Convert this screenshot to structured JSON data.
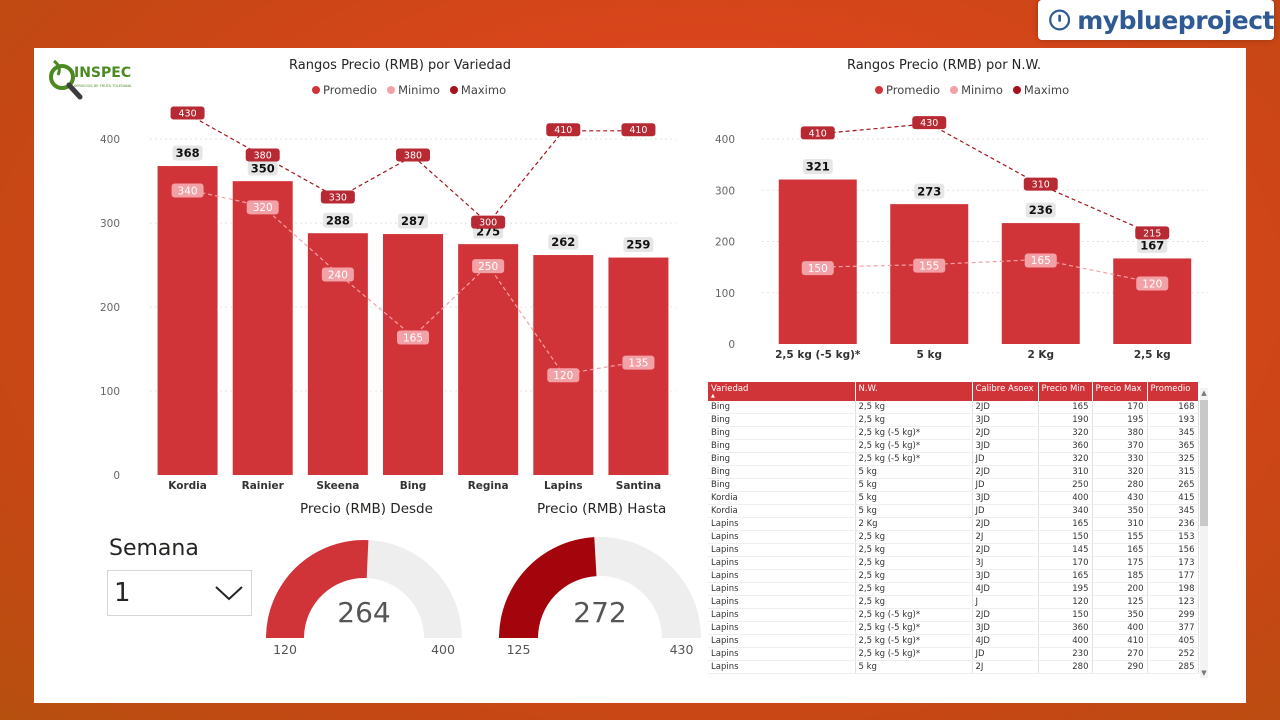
{
  "brand": {
    "text": "myblueproject"
  },
  "logo": {
    "text": "INSPEC",
    "subtitle": "SERVICIOS DE FRUTA TOLEDANA"
  },
  "colors": {
    "bar": "#d13438",
    "dark": "#a4121b",
    "light": "#f2a1a7",
    "axis": "#666666"
  },
  "legend": {
    "promedio": "Promedio",
    "minimo": "Minimo",
    "maximo": "Maximo"
  },
  "chart_data": [
    {
      "type": "bar",
      "title": "Rangos Precio (RMB) por Variedad",
      "categories": [
        "Kordia",
        "Rainier",
        "Skeena",
        "Bing",
        "Regina",
        "Lapins",
        "Santina"
      ],
      "ylim": [
        0,
        430
      ],
      "yticks": [
        0,
        100,
        200,
        300,
        400
      ],
      "series": [
        {
          "name": "Promedio",
          "type": "bar",
          "values": [
            368,
            350,
            288,
            287,
            275,
            262,
            259
          ]
        },
        {
          "name": "Minimo",
          "type": "line",
          "values": [
            340,
            320,
            240,
            165,
            250,
            120,
            135
          ]
        },
        {
          "name": "Maximo",
          "type": "line",
          "values": [
            430,
            380,
            330,
            380,
            300,
            410,
            410
          ]
        }
      ],
      "grid": true,
      "legend": "top-center"
    },
    {
      "type": "bar",
      "title": "Rangos Precio (RMB) por N.W.",
      "categories": [
        "2,5 kg (-5 kg)*",
        "5 kg",
        "2 Kg",
        "2,5 kg"
      ],
      "ylim": [
        0,
        445
      ],
      "yticks": [
        0,
        100,
        200,
        300,
        400
      ],
      "series": [
        {
          "name": "Promedio",
          "type": "bar",
          "values": [
            321,
            273,
            236,
            167
          ]
        },
        {
          "name": "Minimo",
          "type": "line",
          "values": [
            150,
            155,
            165,
            120
          ]
        },
        {
          "name": "Maximo",
          "type": "line",
          "values": [
            410,
            430,
            310,
            215
          ]
        }
      ],
      "grid": true,
      "legend": "top-center"
    }
  ],
  "semana": {
    "label": "Semana",
    "value": "1"
  },
  "gauges": [
    {
      "title": "Precio (RMB) Desde",
      "value": 264,
      "min": 120,
      "max": 400,
      "color": "#d13438"
    },
    {
      "title": "Precio (RMB) Hasta",
      "value": 272,
      "min": 125,
      "max": 430,
      "color": "#a4040b"
    }
  ],
  "table": {
    "columns": [
      "Variedad",
      "N.W.",
      "Calibre Asoex",
      "Precio Min",
      "Precio Max",
      "Promedio"
    ],
    "rows": [
      [
        "Bing",
        "2,5 kg",
        "2JD",
        "165",
        "170",
        "168"
      ],
      [
        "Bing",
        "2,5 kg",
        "3JD",
        "190",
        "195",
        "193"
      ],
      [
        "Bing",
        "2,5 kg (-5 kg)*",
        "2JD",
        "320",
        "380",
        "345"
      ],
      [
        "Bing",
        "2,5 kg (-5 kg)*",
        "3JD",
        "360",
        "370",
        "365"
      ],
      [
        "Bing",
        "2,5 kg (-5 kg)*",
        "JD",
        "320",
        "330",
        "325"
      ],
      [
        "Bing",
        "5 kg",
        "2JD",
        "310",
        "320",
        "315"
      ],
      [
        "Bing",
        "5 kg",
        "JD",
        "250",
        "280",
        "265"
      ],
      [
        "Kordia",
        "5 kg",
        "3JD",
        "400",
        "430",
        "415"
      ],
      [
        "Kordia",
        "5 kg",
        "JD",
        "340",
        "350",
        "345"
      ],
      [
        "Lapins",
        "2 Kg",
        "2JD",
        "165",
        "310",
        "236"
      ],
      [
        "Lapins",
        "2,5 kg",
        "2J",
        "150",
        "155",
        "153"
      ],
      [
        "Lapins",
        "2,5 kg",
        "2JD",
        "145",
        "165",
        "156"
      ],
      [
        "Lapins",
        "2,5 kg",
        "3J",
        "170",
        "175",
        "173"
      ],
      [
        "Lapins",
        "2,5 kg",
        "3JD",
        "165",
        "185",
        "177"
      ],
      [
        "Lapins",
        "2,5 kg",
        "4JD",
        "195",
        "200",
        "198"
      ],
      [
        "Lapins",
        "2,5 kg",
        "J",
        "120",
        "125",
        "123"
      ],
      [
        "Lapins",
        "2,5 kg (-5 kg)*",
        "2JD",
        "150",
        "350",
        "299"
      ],
      [
        "Lapins",
        "2,5 kg (-5 kg)*",
        "3JD",
        "360",
        "400",
        "377"
      ],
      [
        "Lapins",
        "2,5 kg (-5 kg)*",
        "4JD",
        "400",
        "410",
        "405"
      ],
      [
        "Lapins",
        "2,5 kg (-5 kg)*",
        "JD",
        "230",
        "270",
        "252"
      ],
      [
        "Lapins",
        "5 kg",
        "2J",
        "280",
        "290",
        "285"
      ]
    ]
  }
}
